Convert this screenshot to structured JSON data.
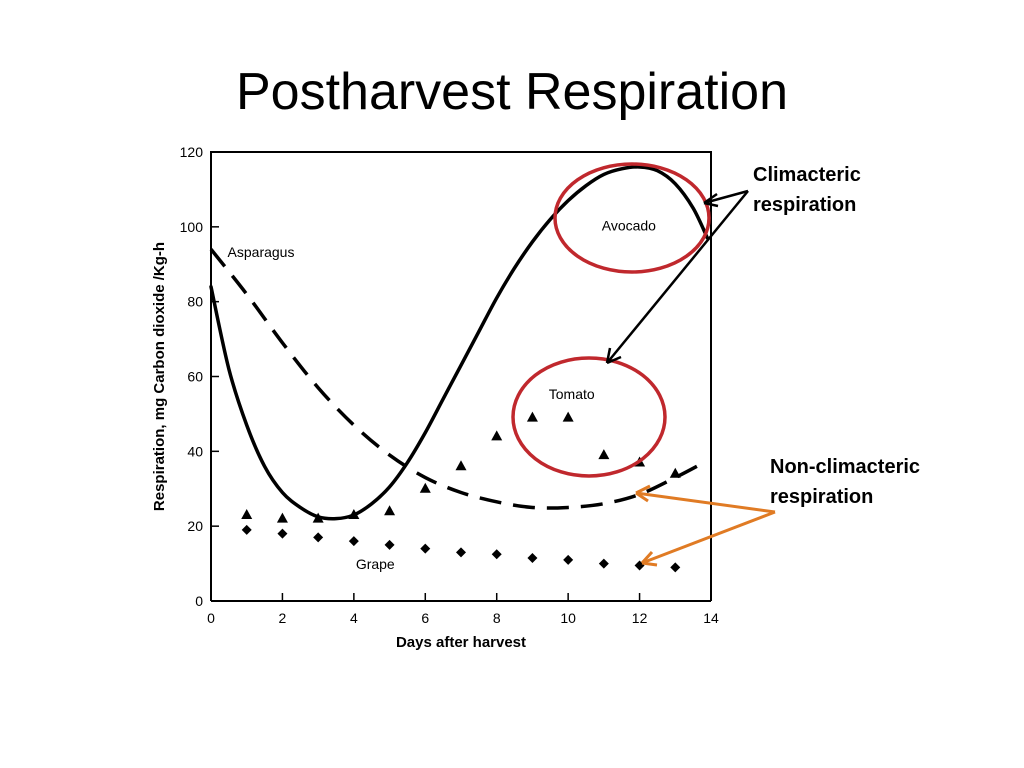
{
  "slide": {
    "title": "Postharvest Respiration",
    "annotations": {
      "climacteric": [
        "Climacteric",
        "respiration"
      ],
      "non_climacteric": [
        "Non-climacteric",
        "respiration"
      ]
    }
  },
  "colors": {
    "highlight_circle": "#c0282d",
    "orange_arrow": "#e07b24",
    "ink": "#000000"
  },
  "chart_data": {
    "type": "line",
    "xlabel": "Days after harvest",
    "ylabel": "Respiration, mg Carbon dioxide /Kg-h",
    "xlim": [
      0,
      14
    ],
    "ylim": [
      0,
      120
    ],
    "xticks": [
      0,
      2,
      4,
      6,
      8,
      10,
      12,
      14
    ],
    "yticks": [
      0,
      20,
      40,
      60,
      80,
      100,
      120
    ],
    "grid": false,
    "series": [
      {
        "name": "Avocado",
        "style": "solid",
        "x": [
          0,
          0.5,
          1,
          1.5,
          2,
          2.5,
          3,
          3.5,
          4,
          4.5,
          5,
          5.5,
          6,
          6.5,
          7,
          7.5,
          8,
          8.5,
          9,
          9.5,
          10,
          10.5,
          11,
          11.5,
          12,
          12.5,
          13,
          13.5,
          13.9
        ],
        "y": [
          84,
          62,
          47,
          36,
          29,
          25,
          22.5,
          22,
          23,
          26,
          30.5,
          37,
          45,
          54,
          63,
          72,
          81,
          89,
          96,
          102,
          107,
          111,
          114,
          115.5,
          116,
          115,
          111.5,
          105,
          97
        ]
      },
      {
        "name": "Asparagus",
        "style": "dashed",
        "x": [
          0,
          1,
          2,
          3,
          4,
          5,
          6,
          7,
          8,
          9,
          10,
          11,
          12,
          13,
          13.8
        ],
        "y": [
          94,
          82,
          69,
          57,
          47,
          39,
          33,
          29,
          26.5,
          25,
          25,
          26,
          28.5,
          33,
          37
        ]
      },
      {
        "name": "Tomato",
        "style": "triangle",
        "x": [
          1,
          2,
          3,
          4,
          5,
          6,
          7,
          8,
          9,
          10,
          11,
          12,
          13
        ],
        "y": [
          23,
          22,
          22,
          23,
          24,
          30,
          36,
          44,
          49,
          49,
          39,
          37,
          34
        ]
      },
      {
        "name": "Grape",
        "style": "diamond",
        "x": [
          1,
          2,
          3,
          4,
          5,
          6,
          7,
          8,
          9,
          10,
          11,
          12,
          13
        ],
        "y": [
          19,
          18,
          17,
          16,
          15,
          14,
          13,
          12.5,
          11.5,
          11,
          10,
          9.5,
          9
        ]
      }
    ]
  }
}
